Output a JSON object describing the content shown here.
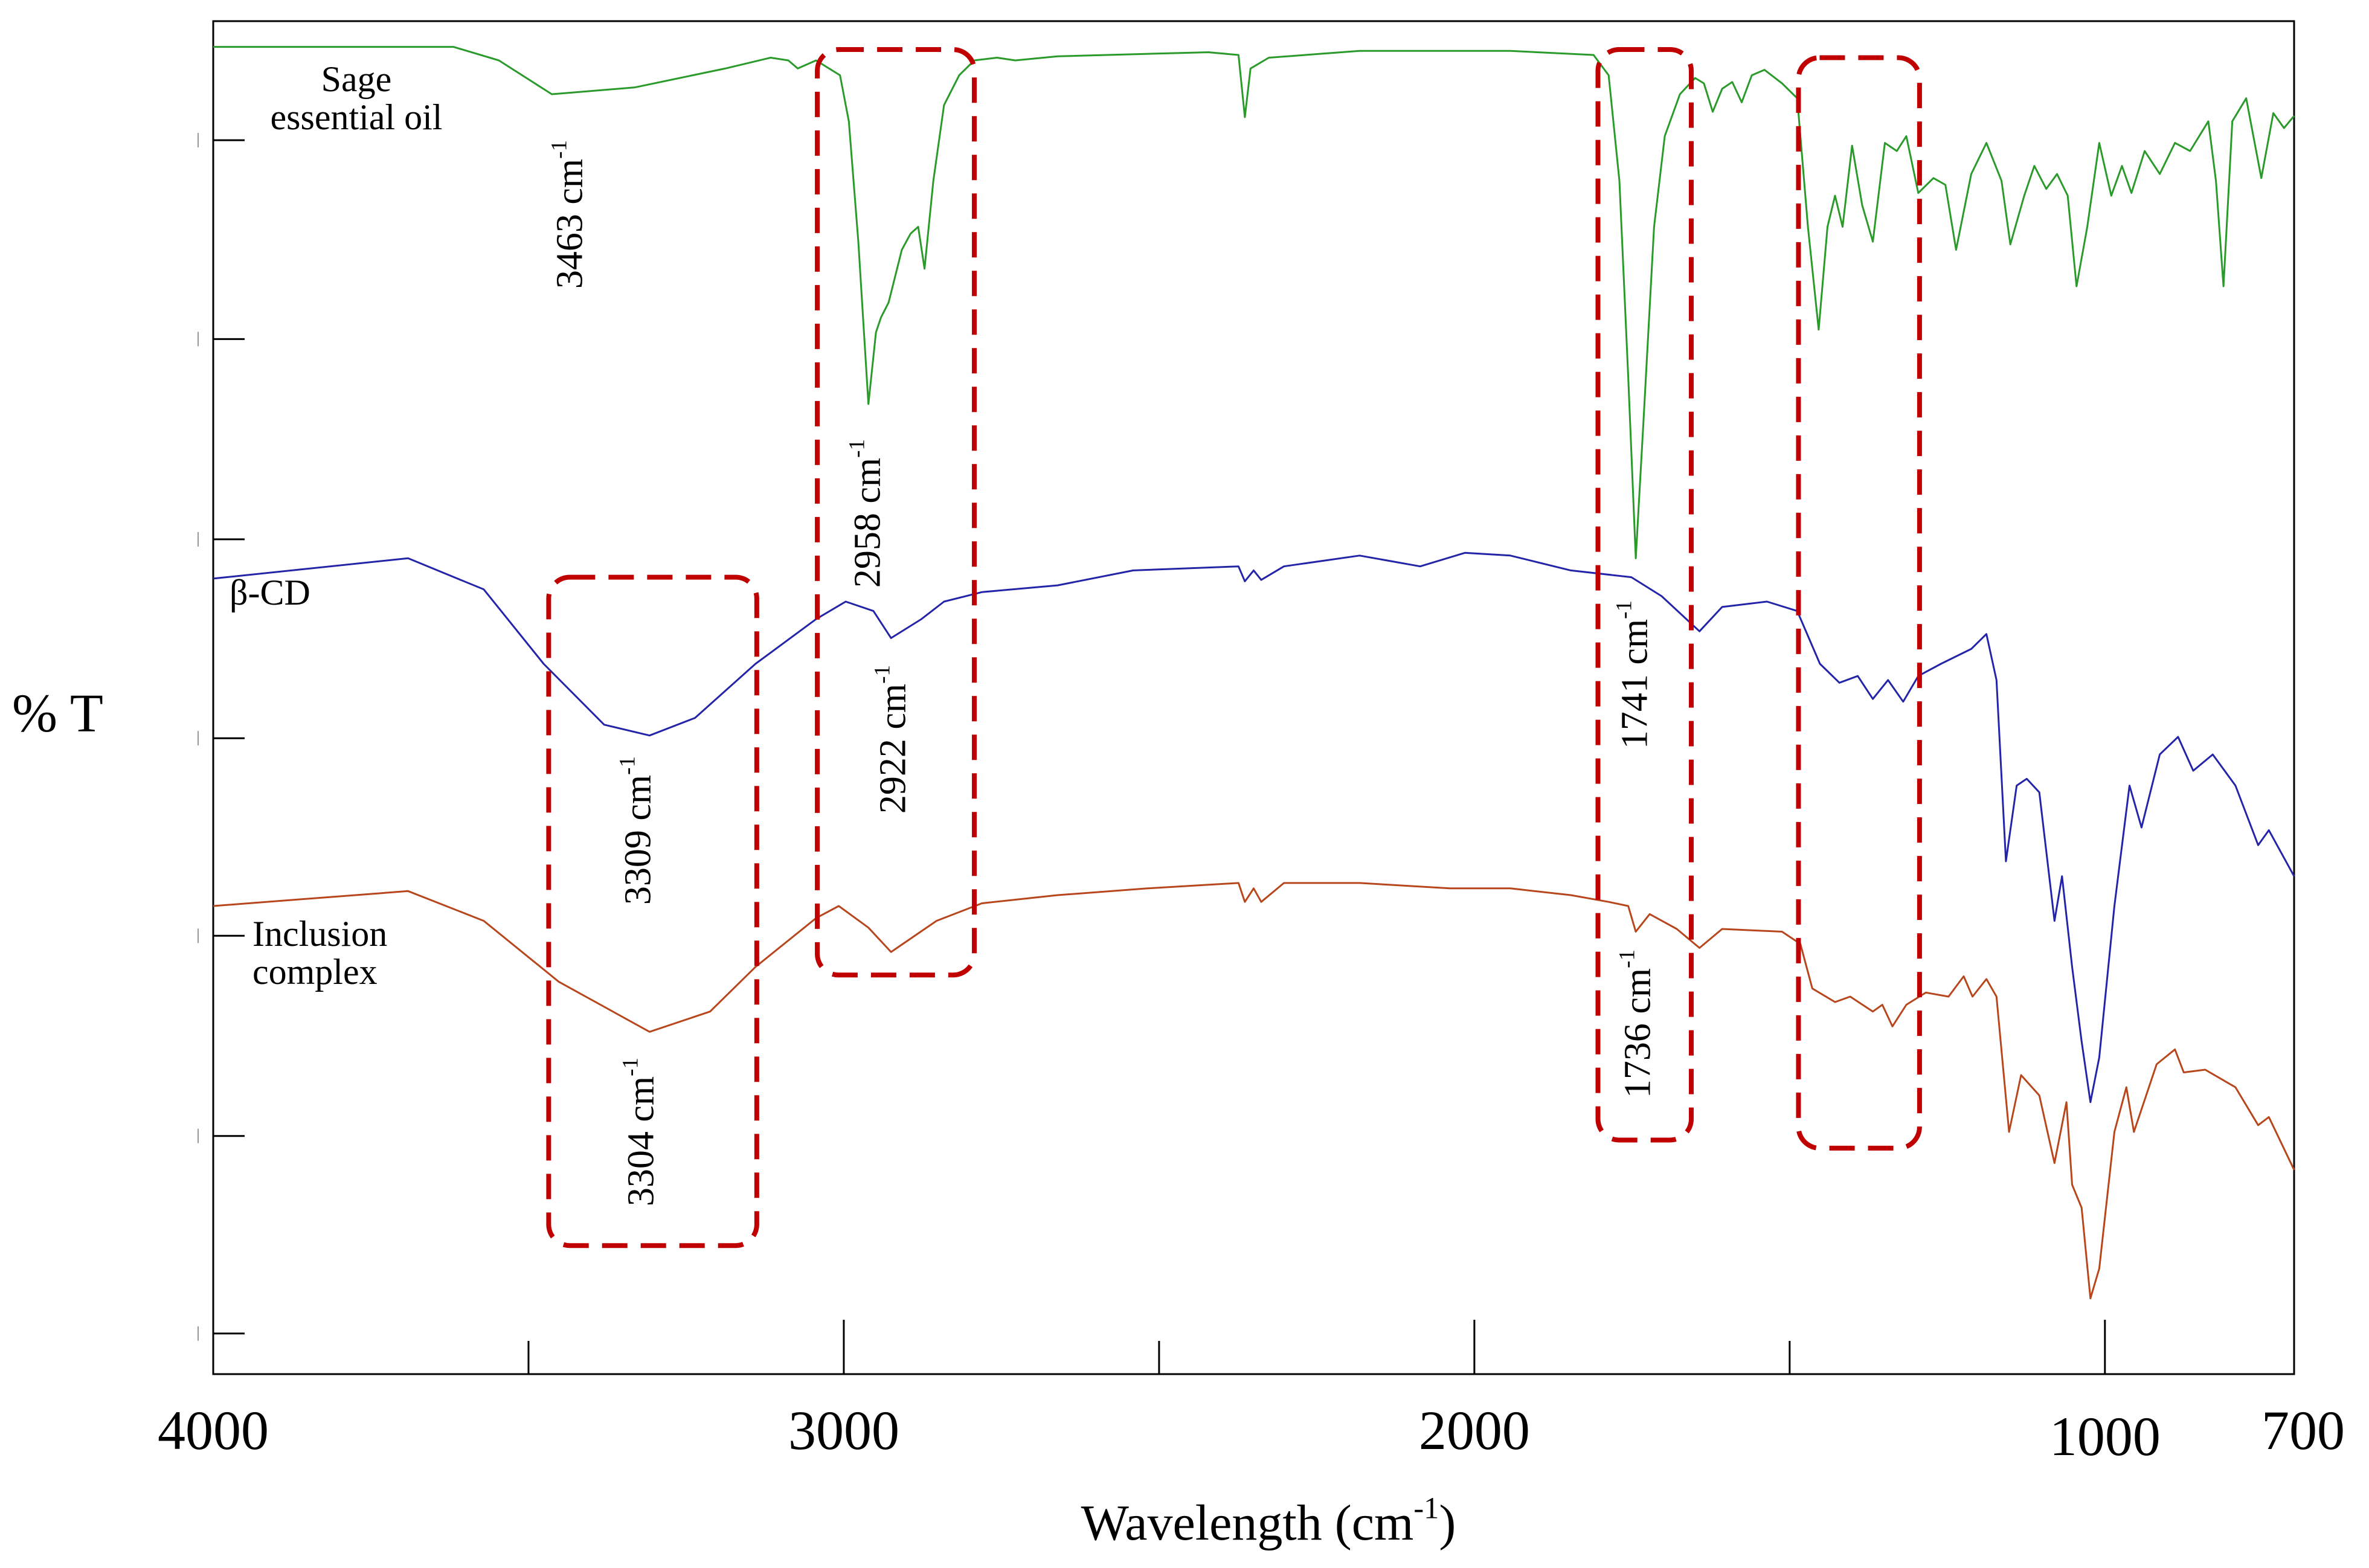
{
  "chart_data": {
    "type": "line",
    "title": "",
    "xlabel": "Wavelength (cm",
    "xlabel_sup": "-1",
    "xlabel_close": ")",
    "ylabel": "% T",
    "xlim": [
      4000,
      700
    ],
    "ylim": [
      0,
      100
    ],
    "x_reversed": true,
    "grid": false,
    "x_ticks_major": [
      4000,
      3000,
      2000,
      1000,
      700
    ],
    "x_ticks_minor": [
      3500,
      2500,
      1500
    ],
    "x_tick_labels": [
      "4000",
      "3000",
      "2000",
      "1000",
      "700"
    ],
    "y_ticks": [
      91.2,
      76.5,
      61.7,
      47.0,
      32.4,
      17.6,
      3.0
    ],
    "y_units": "arbitrary (offset spectra)",
    "series": [
      {
        "name": "Sage essential oil",
        "label_line1": "Sage",
        "label_line2": "essential oil",
        "color": "#2a9a2a",
        "points": [
          [
            4000,
            98.1
          ],
          [
            3619,
            98.1
          ],
          [
            3547,
            97.1
          ],
          [
            3463,
            94.6
          ],
          [
            3332,
            95.1
          ],
          [
            3188,
            96.5
          ],
          [
            3116,
            97.3
          ],
          [
            3088,
            97.1
          ],
          [
            3073,
            96.5
          ],
          [
            3044,
            97.1
          ],
          [
            3006,
            96.0
          ],
          [
            2992,
            92.6
          ],
          [
            2977,
            83.7
          ],
          [
            2961,
            71.7
          ],
          [
            2949,
            77.0
          ],
          [
            2941,
            78.1
          ],
          [
            2929,
            79.2
          ],
          [
            2908,
            83.1
          ],
          [
            2894,
            84.3
          ],
          [
            2882,
            84.8
          ],
          [
            2872,
            81.7
          ],
          [
            2858,
            88.2
          ],
          [
            2841,
            93.8
          ],
          [
            2817,
            96.0
          ],
          [
            2793,
            97.1
          ],
          [
            2757,
            97.3
          ],
          [
            2728,
            97.1
          ],
          [
            2661,
            97.4
          ],
          [
            2422,
            97.7
          ],
          [
            2374,
            97.5
          ],
          [
            2364,
            92.9
          ],
          [
            2355,
            96.5
          ],
          [
            2326,
            97.3
          ],
          [
            2182,
            97.8
          ],
          [
            1943,
            97.8
          ],
          [
            1811,
            97.5
          ],
          [
            1787,
            96.0
          ],
          [
            1770,
            88.2
          ],
          [
            1756,
            73.7
          ],
          [
            1744,
            60.3
          ],
          [
            1732,
            70.3
          ],
          [
            1715,
            84.8
          ],
          [
            1698,
            91.5
          ],
          [
            1674,
            94.6
          ],
          [
            1650,
            95.8
          ],
          [
            1636,
            95.4
          ],
          [
            1622,
            93.3
          ],
          [
            1607,
            95.0
          ],
          [
            1591,
            95.5
          ],
          [
            1576,
            94.0
          ],
          [
            1560,
            96.0
          ],
          [
            1540,
            96.4
          ],
          [
            1512,
            95.4
          ],
          [
            1488,
            94.3
          ],
          [
            1471,
            84.8
          ],
          [
            1454,
            77.2
          ],
          [
            1440,
            84.8
          ],
          [
            1428,
            87.1
          ],
          [
            1416,
            84.8
          ],
          [
            1401,
            90.8
          ],
          [
            1385,
            86.4
          ],
          [
            1368,
            83.7
          ],
          [
            1349,
            91.0
          ],
          [
            1330,
            90.4
          ],
          [
            1315,
            91.5
          ],
          [
            1296,
            87.3
          ],
          [
            1272,
            88.4
          ],
          [
            1253,
            87.9
          ],
          [
            1236,
            83.1
          ],
          [
            1212,
            88.7
          ],
          [
            1188,
            91.0
          ],
          [
            1164,
            88.2
          ],
          [
            1150,
            83.5
          ],
          [
            1128,
            87.1
          ],
          [
            1112,
            89.3
          ],
          [
            1093,
            87.6
          ],
          [
            1076,
            88.7
          ],
          [
            1059,
            87.1
          ],
          [
            1045,
            80.4
          ],
          [
            1028,
            84.8
          ],
          [
            1009,
            91.0
          ],
          [
            990,
            87.1
          ],
          [
            973,
            89.3
          ],
          [
            958,
            87.3
          ],
          [
            937,
            90.4
          ],
          [
            913,
            88.7
          ],
          [
            889,
            91.0
          ],
          [
            865,
            90.4
          ],
          [
            836,
            92.6
          ],
          [
            824,
            88.2
          ],
          [
            812,
            80.4
          ],
          [
            798,
            92.6
          ],
          [
            776,
            94.3
          ],
          [
            752,
            88.4
          ],
          [
            733,
            93.2
          ],
          [
            716,
            92.1
          ],
          [
            700,
            93.0
          ]
        ]
      },
      {
        "name": "β-CD",
        "label_line1": "β-CD",
        "color": "#2424a8",
        "points": [
          [
            4000,
            58.8
          ],
          [
            3691,
            60.3
          ],
          [
            3571,
            58.0
          ],
          [
            3476,
            52.5
          ],
          [
            3380,
            48.0
          ],
          [
            3308,
            47.2
          ],
          [
            3236,
            48.5
          ],
          [
            3140,
            52.5
          ],
          [
            3044,
            55.8
          ],
          [
            2997,
            57.1
          ],
          [
            2953,
            56.4
          ],
          [
            2925,
            54.4
          ],
          [
            2877,
            55.8
          ],
          [
            2841,
            57.1
          ],
          [
            2781,
            57.8
          ],
          [
            2661,
            58.3
          ],
          [
            2541,
            59.4
          ],
          [
            2374,
            59.7
          ],
          [
            2364,
            58.6
          ],
          [
            2350,
            59.4
          ],
          [
            2338,
            58.7
          ],
          [
            2302,
            59.7
          ],
          [
            2182,
            60.5
          ],
          [
            2086,
            59.7
          ],
          [
            2015,
            60.7
          ],
          [
            1943,
            60.5
          ],
          [
            1847,
            59.4
          ],
          [
            1751,
            58.9
          ],
          [
            1703,
            57.5
          ],
          [
            1643,
            54.9
          ],
          [
            1607,
            56.7
          ],
          [
            1536,
            57.1
          ],
          [
            1488,
            56.4
          ],
          [
            1452,
            52.5
          ],
          [
            1421,
            51.1
          ],
          [
            1392,
            51.6
          ],
          [
            1368,
            49.9
          ],
          [
            1344,
            51.3
          ],
          [
            1320,
            49.7
          ],
          [
            1296,
            51.6
          ],
          [
            1260,
            52.5
          ],
          [
            1212,
            53.6
          ],
          [
            1188,
            54.7
          ],
          [
            1172,
            51.3
          ],
          [
            1157,
            37.9
          ],
          [
            1140,
            43.5
          ],
          [
            1124,
            44.0
          ],
          [
            1104,
            43.0
          ],
          [
            1080,
            33.5
          ],
          [
            1068,
            36.8
          ],
          [
            1052,
            30.1
          ],
          [
            1037,
            24.6
          ],
          [
            1023,
            20.1
          ],
          [
            1009,
            23.4
          ],
          [
            985,
            34.6
          ],
          [
            961,
            43.5
          ],
          [
            942,
            40.4
          ],
          [
            913,
            45.8
          ],
          [
            884,
            47.1
          ],
          [
            860,
            44.6
          ],
          [
            829,
            45.8
          ],
          [
            793,
            43.5
          ],
          [
            757,
            39.1
          ],
          [
            740,
            40.2
          ],
          [
            700,
            36.8
          ]
        ]
      },
      {
        "name": "Inclusion complex",
        "label_line1": "Inclusion",
        "label_line2": "complex",
        "color": "#b8461c",
        "points": [
          [
            4000,
            34.6
          ],
          [
            3691,
            35.7
          ],
          [
            3571,
            33.5
          ],
          [
            3452,
            29.0
          ],
          [
            3308,
            25.3
          ],
          [
            3212,
            26.8
          ],
          [
            3140,
            30.1
          ],
          [
            3044,
            33.7
          ],
          [
            3008,
            34.6
          ],
          [
            2961,
            33.0
          ],
          [
            2925,
            31.2
          ],
          [
            2853,
            33.5
          ],
          [
            2781,
            34.8
          ],
          [
            2661,
            35.4
          ],
          [
            2518,
            35.9
          ],
          [
            2374,
            36.3
          ],
          [
            2364,
            34.9
          ],
          [
            2350,
            35.9
          ],
          [
            2338,
            34.9
          ],
          [
            2302,
            36.3
          ],
          [
            2182,
            36.3
          ],
          [
            2039,
            35.9
          ],
          [
            1943,
            35.9
          ],
          [
            1847,
            35.4
          ],
          [
            1787,
            34.9
          ],
          [
            1756,
            34.6
          ],
          [
            1744,
            32.7
          ],
          [
            1722,
            34.0
          ],
          [
            1679,
            32.9
          ],
          [
            1643,
            31.5
          ],
          [
            1607,
            32.9
          ],
          [
            1512,
            32.7
          ],
          [
            1483,
            31.8
          ],
          [
            1464,
            28.5
          ],
          [
            1428,
            27.5
          ],
          [
            1404,
            27.9
          ],
          [
            1368,
            26.8
          ],
          [
            1353,
            27.3
          ],
          [
            1337,
            25.7
          ],
          [
            1315,
            27.3
          ],
          [
            1284,
            28.2
          ],
          [
            1248,
            27.9
          ],
          [
            1224,
            29.4
          ],
          [
            1210,
            27.9
          ],
          [
            1188,
            29.2
          ],
          [
            1172,
            27.9
          ],
          [
            1152,
            17.9
          ],
          [
            1133,
            22.1
          ],
          [
            1104,
            20.6
          ],
          [
            1080,
            15.6
          ],
          [
            1061,
            20.1
          ],
          [
            1052,
            14.0
          ],
          [
            1037,
            12.3
          ],
          [
            1023,
            5.6
          ],
          [
            1009,
            7.8
          ],
          [
            985,
            17.9
          ],
          [
            966,
            21.2
          ],
          [
            954,
            17.9
          ],
          [
            918,
            22.9
          ],
          [
            889,
            24.0
          ],
          [
            875,
            22.3
          ],
          [
            841,
            22.5
          ],
          [
            793,
            21.2
          ],
          [
            757,
            18.4
          ],
          [
            740,
            19.0
          ],
          [
            700,
            15.1
          ]
        ]
      }
    ],
    "highlight_boxes": [
      {
        "x": [
          3042,
          2793
        ],
        "y": [
          29.5,
          97.9
        ]
      },
      {
        "x": [
          3468,
          3138
        ],
        "y": [
          9.5,
          58.9
        ]
      },
      {
        "x": [
          1804,
          1656
        ],
        "y": [
          17.3,
          97.9
        ]
      },
      {
        "x": [
          1486,
          1294
        ],
        "y": [
          16.7,
          97.3
        ]
      }
    ],
    "box_color": "#c00000",
    "annotations": [
      {
        "text": "3463 cm",
        "sup": "-1",
        "x": 3434,
        "y": 85.7
      },
      {
        "text": "2958 cm",
        "sup": "-1",
        "x": 2962,
        "y": 63.6
      },
      {
        "text": "3309 cm",
        "sup": "-1",
        "x": 3326,
        "y": 40.2
      },
      {
        "text": "2922 cm",
        "sup": "-1",
        "x": 2921,
        "y": 46.9
      },
      {
        "text": "1741 cm",
        "sup": "-1",
        "x": 1745,
        "y": 51.7
      },
      {
        "text": "1736 cm",
        "sup": "-1",
        "x": 1740,
        "y": 25.9
      },
      {
        "text": "3304 cm",
        "sup": "-1",
        "x": 3321,
        "y": 17.9
      }
    ]
  }
}
